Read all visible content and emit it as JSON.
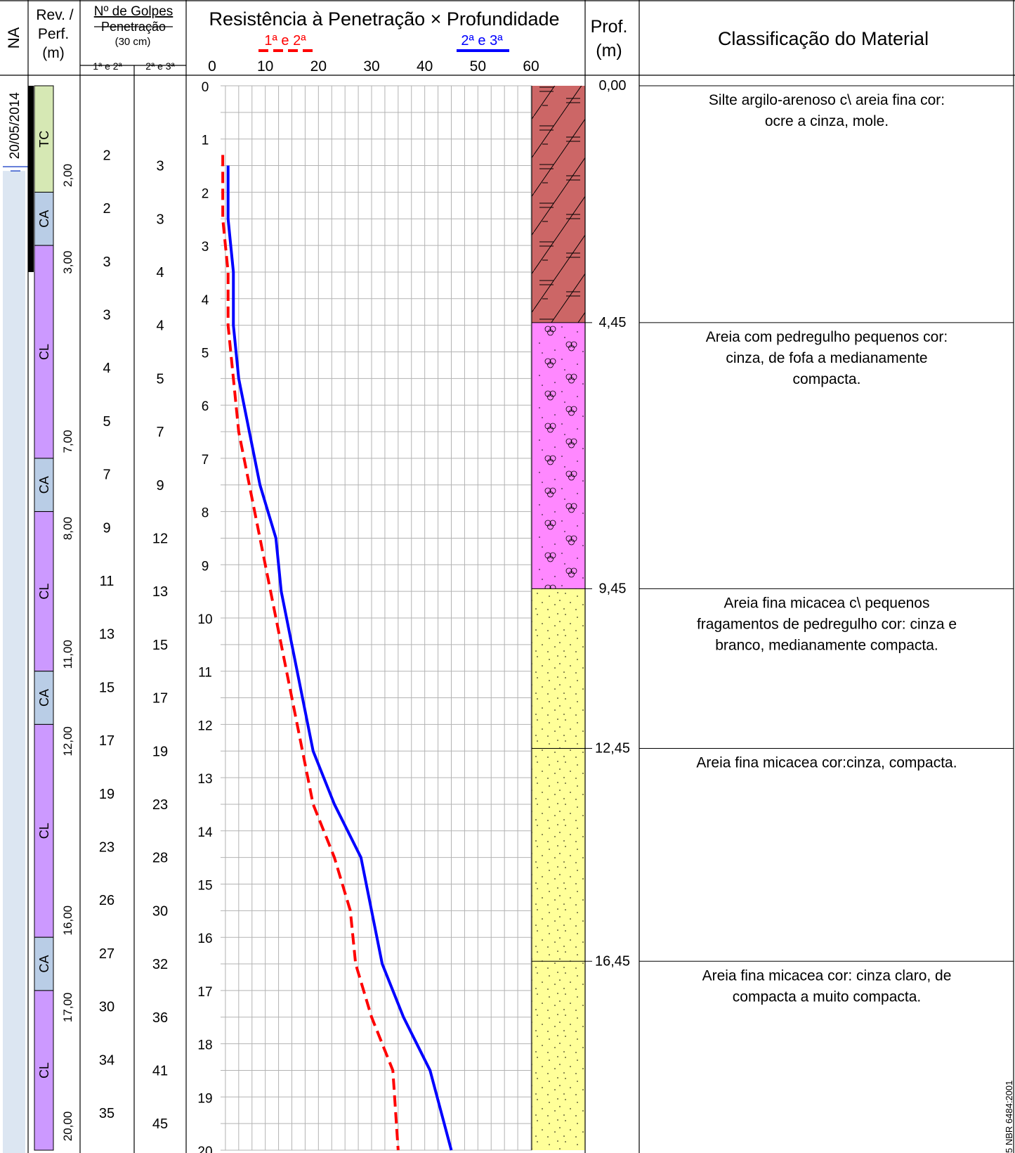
{
  "header": {
    "na": "NA",
    "rev_line1": "Rev. /",
    "rev_line2": "Perf.",
    "rev_line3": "(m)",
    "golpes_title": "Nº de Golpes",
    "golpes_sub": "Penetração",
    "golpes_sub2": "(30 cm)",
    "golpes_col1": "1ª e 2ª",
    "golpes_col2": "2ª e 3ª",
    "chart_title": "Resistência à Penetração × Profundidade",
    "legend1": "1ª e 2ª",
    "legend2": "2ª e 3ª",
    "prof_line1": "Prof.",
    "prof_line2": "(m)",
    "classification_title": "Classificação do Material"
  },
  "water_level": {
    "date": "20/05/2014",
    "depth": 1.6
  },
  "casing": [
    {
      "label": "TC",
      "from": 0,
      "to": 2.0,
      "color": "#d6e8b4"
    },
    {
      "label": "CA",
      "from": 2.0,
      "to": 3.0,
      "color": "#b9cde6"
    },
    {
      "label": "CL",
      "from": 3.0,
      "to": 7.0,
      "color": "#cc99ff"
    },
    {
      "label": "CA",
      "from": 7.0,
      "to": 8.0,
      "color": "#b9cde6"
    },
    {
      "label": "CL",
      "from": 8.0,
      "to": 11.0,
      "color": "#cc99ff"
    },
    {
      "label": "CA",
      "from": 11.0,
      "to": 12.0,
      "color": "#b9cde6"
    },
    {
      "label": "CL",
      "from": 12.0,
      "to": 16.0,
      "color": "#cc99ff"
    },
    {
      "label": "CA",
      "from": 16.0,
      "to": 17.0,
      "color": "#b9cde6"
    },
    {
      "label": "CL",
      "from": 17.0,
      "to": 20.0,
      "color": "#cc99ff"
    }
  ],
  "casing_depth_labels": [
    "2,00",
    "3,00",
    "7,00",
    "8,00",
    "11,00",
    "12,00",
    "16,00",
    "17,00",
    "20,00"
  ],
  "blows": {
    "first": [
      "2",
      "2",
      "3",
      "3",
      "4",
      "5",
      "7",
      "9",
      "11",
      "13",
      "15",
      "17",
      "19",
      "23",
      "26",
      "27",
      "30",
      "34",
      "35"
    ],
    "second": [
      "3",
      "3",
      "4",
      "4",
      "5",
      "7",
      "9",
      "12",
      "13",
      "15",
      "17",
      "19",
      "23",
      "28",
      "30",
      "32",
      "36",
      "41",
      "45"
    ]
  },
  "strata": [
    {
      "from": 0,
      "to": 4.45,
      "color": "#cc6666",
      "pattern": "silt-clay",
      "depth_label": "0,00",
      "description": [
        "Silte argilo-arenoso c\\ areia fina cor:",
        "ocre a cinza, mole."
      ]
    },
    {
      "from": 4.45,
      "to": 9.45,
      "color": "#ff88ff",
      "pattern": "gravel-sand",
      "depth_label": "4,45",
      "description": [
        "Areia com pedregulho pequenos cor:",
        "cinza, de fofa a medianamente",
        "compacta."
      ]
    },
    {
      "from": 9.45,
      "to": 12.45,
      "color": "#ffff99",
      "pattern": "fine-sand",
      "depth_label": "9,45",
      "description": [
        "Areia fina micacea c\\ pequenos",
        "fragamentos de pedregulho cor: cinza e",
        "branco, medianamente compacta."
      ]
    },
    {
      "from": 12.45,
      "to": 16.45,
      "color": "#ffff99",
      "pattern": "fine-sand",
      "depth_label": "12,45",
      "description": [
        "Areia fina micacea cor:cinza, compacta."
      ]
    },
    {
      "from": 16.45,
      "to": 20.0,
      "color": "#ffff99",
      "pattern": "fine-sand",
      "depth_label": "16,45",
      "description": [
        "Areia fina micacea cor: cinza claro, de",
        "compacta a muito compacta."
      ]
    }
  ],
  "side_text": "5 NBR 6484:2001",
  "chart_data": {
    "type": "line",
    "title": "Resistência à Penetração × Profundidade",
    "xlabel": "",
    "ylabel": "",
    "xlim": [
      0,
      60
    ],
    "ylim": [
      0,
      20
    ],
    "x_ticks": [
      0,
      10,
      20,
      30,
      40,
      50,
      60
    ],
    "y_ticks": [
      0,
      1,
      2,
      3,
      4,
      5,
      6,
      7,
      8,
      9,
      10,
      11,
      12,
      13,
      14,
      15,
      16,
      17,
      18,
      19,
      20
    ],
    "grid": true,
    "legend": "top",
    "series": [
      {
        "name": "1ª e 2ª",
        "color": "#ff0000",
        "dash": true,
        "x": [
          2,
          2,
          2,
          3,
          3,
          4,
          5,
          7,
          9,
          11,
          13,
          15,
          17,
          19,
          23,
          26,
          27,
          30,
          34,
          35
        ],
        "y": [
          1.3,
          1.5,
          2.5,
          3.5,
          4.5,
          5.5,
          6.5,
          7.5,
          8.5,
          9.5,
          10.5,
          11.5,
          12.5,
          13.5,
          14.5,
          15.5,
          16.5,
          17.5,
          18.5,
          20
        ]
      },
      {
        "name": "2ª e 3ª",
        "color": "#0000ff",
        "dash": false,
        "x": [
          3,
          3,
          3,
          4,
          4,
          5,
          7,
          9,
          12,
          13,
          15,
          17,
          19,
          23,
          28,
          30,
          32,
          36,
          41,
          45
        ],
        "y": [
          1.5,
          1.5,
          2.5,
          3.5,
          4.5,
          5.5,
          6.5,
          7.5,
          8.5,
          9.5,
          10.5,
          11.5,
          12.5,
          13.5,
          14.5,
          15.5,
          16.5,
          17.5,
          18.5,
          20
        ]
      }
    ]
  }
}
